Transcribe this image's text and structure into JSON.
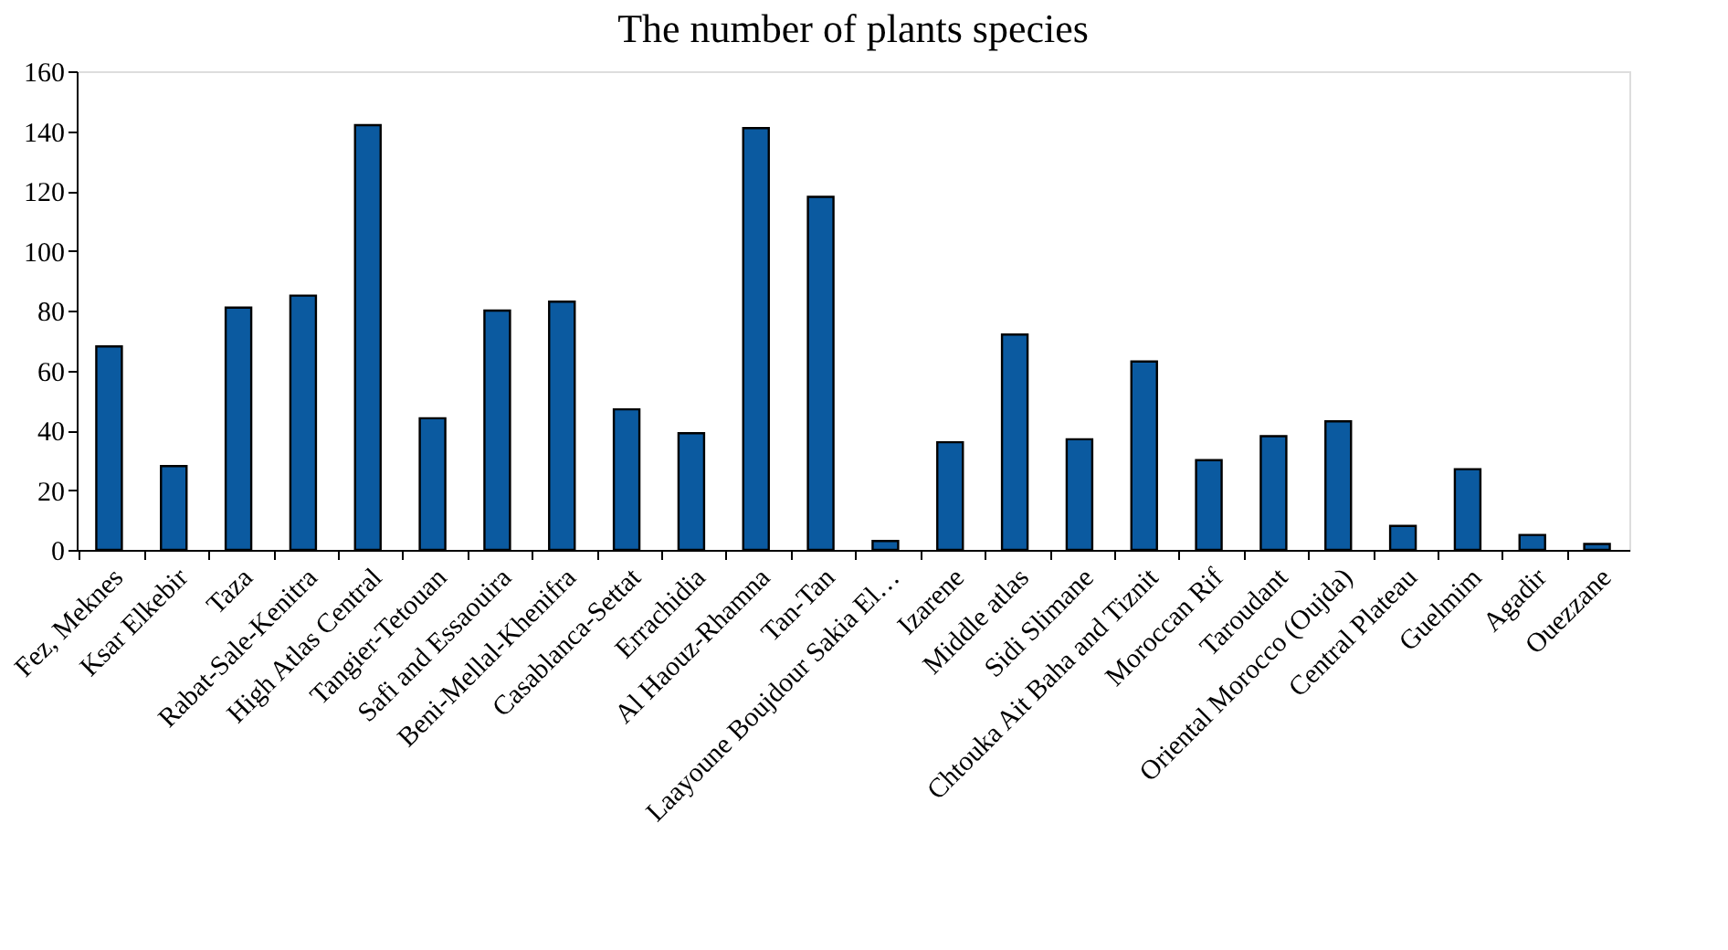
{
  "chart_data": {
    "type": "bar",
    "title": "The number of plants species",
    "categories": [
      "Fez, Meknes",
      "Ksar Elkebir",
      "Taza",
      "Rabat-Sale-Kenitra",
      "High Atlas Central",
      "Tangier-Tetouan",
      "Safi and Essaouira",
      "Beni-Mellal-Khenifra",
      "Casablanca-Settat",
      "Errachidia",
      "Al Haouz-Rhamna",
      "Tan-Tan",
      "Laayoune Boujdour Sakia El…",
      "Izarene",
      "Middle atlas",
      "Sidi Slimane",
      "Chtouka Ait Baha and Tiznit",
      "Moroccan Rif",
      "Taroudant",
      "Oriental Morocco (Oujda)",
      "Central Plateau",
      "Guelmim",
      "Agadir",
      "Ouezzane"
    ],
    "values": [
      68,
      28,
      81,
      85,
      142,
      44,
      80,
      83,
      47,
      39,
      141,
      118,
      3,
      36,
      72,
      37,
      63,
      30,
      38,
      43,
      8,
      27,
      5,
      2
    ],
    "color": "#0b5aa0",
    "ylim": [
      0,
      160
    ],
    "yticks": [
      0,
      20,
      40,
      60,
      80,
      100,
      120,
      140,
      160
    ],
    "grid": false
  }
}
